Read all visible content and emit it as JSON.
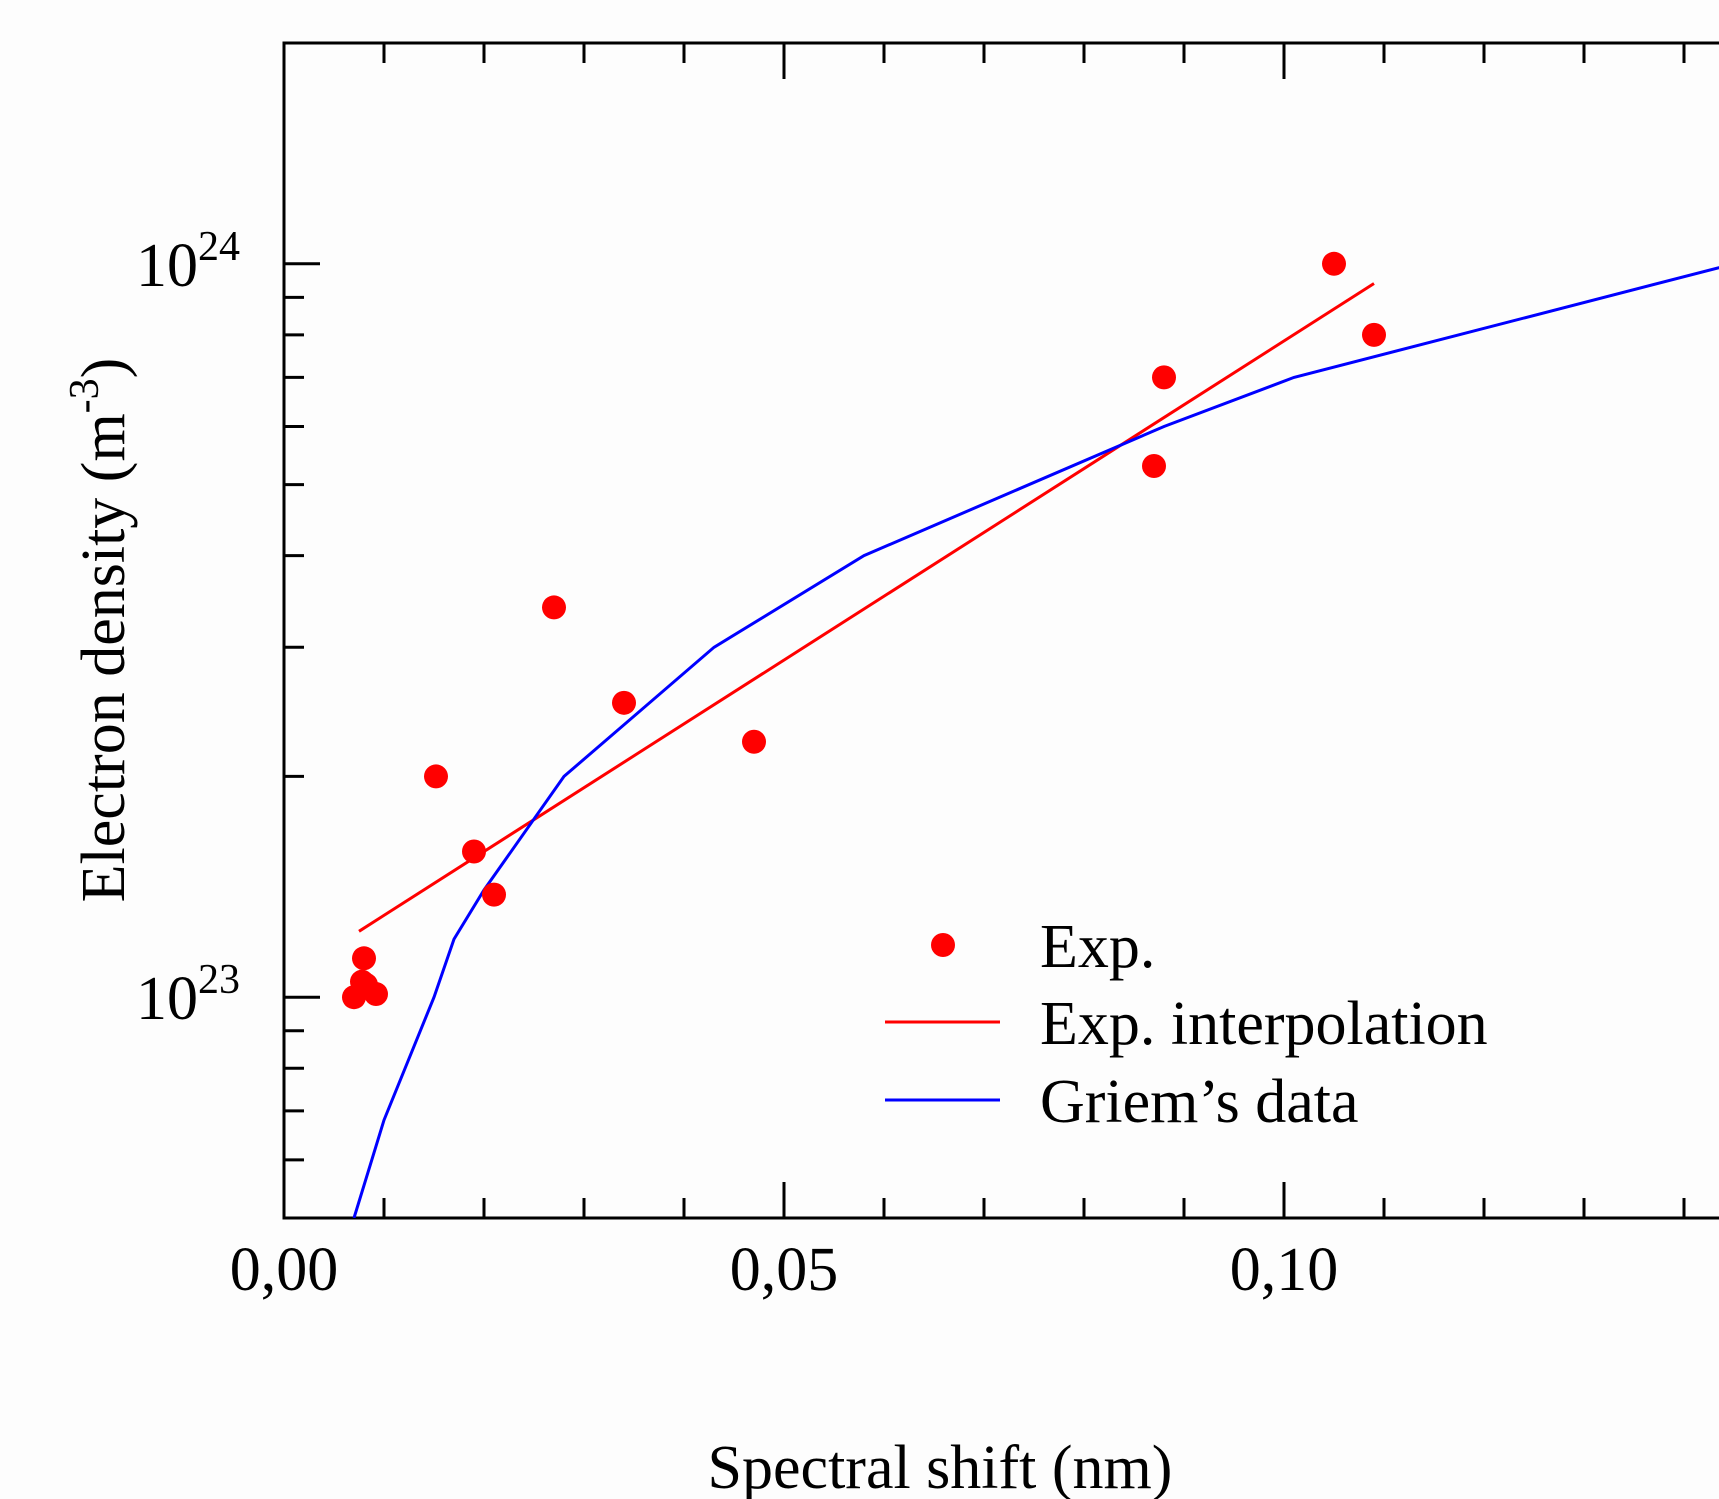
{
  "chart_data": {
    "type": "scatter",
    "xlabel": "Spectral shift (nm)",
    "ylabel": "Electron density (m",
    "ylabel_exponent": "-3",
    "ylabel_close": ")",
    "xlim": [
      0.0,
      0.15
    ],
    "ylim": [
      5e+22,
      2e+24
    ],
    "yscale": "log",
    "x_ticks": [
      {
        "value": 0.0,
        "label": "0,00"
      },
      {
        "value": 0.05,
        "label": "0,05"
      },
      {
        "value": 0.1,
        "label": "0,10"
      }
    ],
    "y_ticks": [
      {
        "value": 1e+23,
        "base": "10",
        "exponent": "23"
      },
      {
        "value": 1e+24,
        "base": "10",
        "exponent": "24"
      }
    ],
    "legend_position": "lower-right",
    "series": [
      {
        "name": "Exp.",
        "kind": "scatter",
        "color": "#ff0000",
        "points": [
          [
            0.007,
            1e+23
          ],
          [
            0.0078,
            1.05e+23
          ],
          [
            0.0082,
            1.04e+23
          ],
          [
            0.0092,
            1.01e+23
          ],
          [
            0.008,
            1.13e+23
          ],
          [
            0.0152,
            2e+23
          ],
          [
            0.019,
            1.58e+23
          ],
          [
            0.021,
            1.38e+23
          ],
          [
            0.027,
            3.4e+23
          ],
          [
            0.034,
            2.52e+23
          ],
          [
            0.047,
            2.23e+23
          ],
          [
            0.087,
            5.3e+23
          ],
          [
            0.088,
            7e+23
          ],
          [
            0.105,
            1e+24
          ],
          [
            0.109,
            8e+23
          ]
        ]
      },
      {
        "name": "Exp. interpolation",
        "kind": "line",
        "color": "#ff0000",
        "points": [
          [
            0.0075,
            1.23e+23
          ],
          [
            0.109,
            9.4e+23
          ]
        ]
      },
      {
        "name": "Griem’s data",
        "kind": "line",
        "color": "#0000ff",
        "points": [
          [
            0.007,
            5e+22
          ],
          [
            0.01,
            6.8e+22
          ],
          [
            0.015,
            1e+23
          ],
          [
            0.017,
            1.2e+23
          ],
          [
            0.02,
            1.4e+23
          ],
          [
            0.028,
            2e+23
          ],
          [
            0.043,
            3e+23
          ],
          [
            0.058,
            4e+23
          ],
          [
            0.088,
            6e+23
          ],
          [
            0.101,
            7e+23
          ],
          [
            0.145,
            1e+24
          ]
        ]
      }
    ]
  }
}
